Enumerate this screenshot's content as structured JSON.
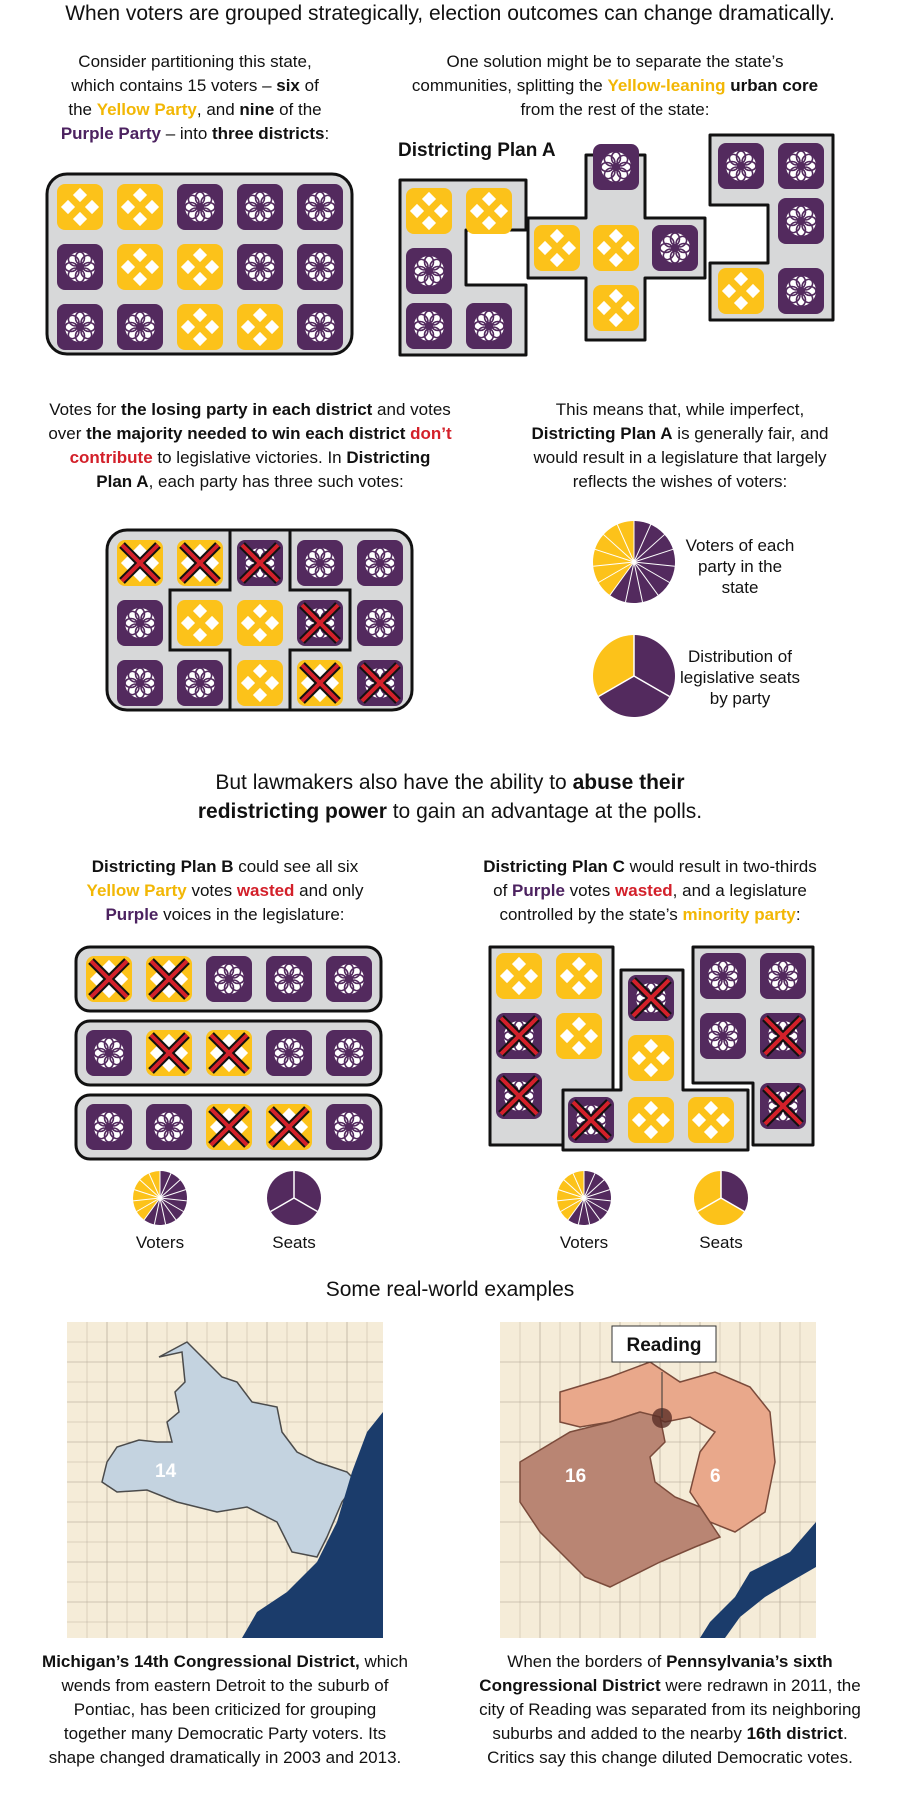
{
  "colors": {
    "yellow": "#fcc21a",
    "purple": "#532a5e",
    "grid_bg": "#d7d8d9",
    "cross": "#d3202a",
    "map_land": "#f5ecd8",
    "map_water": "#1b3c6b",
    "mi_district": "#c4d3e0",
    "pa_16": "#b98573",
    "pa_6": "#e9a88b"
  },
  "headline": "When voters are grouped strategically, election outcomes can change dramatically.",
  "intro": {
    "p1": "Consider partitioning this state,",
    "p2": "which contains 15 voters – ",
    "p3": "six",
    "p4": " of",
    "p5": "the ",
    "p6": "Yellow Party",
    "p7": ", and ",
    "p8": "nine",
    "p9": " of the",
    "p10": "Purple Party",
    "p11": " – into ",
    "p12": "three districts",
    "p13": ":"
  },
  "solution": {
    "s1": "One solution might be to separate the state’s",
    "s2": "communities, splitting the ",
    "s3": "Yellow-leaning",
    "s4": " urban core",
    "s5": "from the rest of the state:"
  },
  "plan_a_title": "Districting Plan A",
  "wasted": {
    "w1": "Votes for ",
    "w2": "the losing party in each district",
    "w3": " and votes",
    "w4": "over ",
    "w5": "the majority needed to win each district",
    "w6": " don’t",
    "w7": "contribute",
    "w8": " to legislative victories. In ",
    "w9": "Districting",
    "w10": "Plan A",
    "w11": ", each party has three such votes:"
  },
  "fair": {
    "f1": "This means that, while imperfect,",
    "f2": "Districting Plan A",
    "f3": " is generally fair, and",
    "f4": "would result in a  legislature that largely",
    "f5": "reflects the wishes of voters:"
  },
  "pie_labels": {
    "voters_state": "Voters of each party in the state",
    "seats_dist": "Distribution of legislative seats by party",
    "voters": "Voters",
    "seats": "Seats"
  },
  "abuse": {
    "a1": "But lawmakers also have the ability to ",
    "a2": "abuse their",
    "a3": "redistricting power",
    "a4": " to gain an advantage at the polls."
  },
  "plan_b": {
    "b1": "Districting Plan B",
    "b2": " could see all six",
    "b3": "Yellow Party",
    "b4": " votes ",
    "b5": "wasted",
    "b6": " and only",
    "b7": "Purple",
    "b8": " voices in the legislature:"
  },
  "plan_c": {
    "c1": "Districting Plan C",
    "c2": " would result in two-thirds",
    "c3": "of ",
    "c4": "Purple",
    "c5": " votes ",
    "c6": "wasted",
    "c7": ", and a legislature",
    "c8": "controlled by the state’s ",
    "c9": "minority party",
    "c10": ":"
  },
  "examples_title": "Some real-world examples",
  "maps": {
    "mi_label": "14",
    "pa_16": "16",
    "pa_6": "6",
    "reading": "Reading"
  },
  "michigan": {
    "m1": "Michigan’s 14th Congressional District,",
    "m2": " which",
    "m3": "wends from eastern Detroit to the suburb of",
    "m4": "Pontiac, has been criticized for grouping",
    "m5": "together many Democratic Party voters. Its",
    "m6": "shape changed dramatically in 2003 and 2013."
  },
  "penn": {
    "n1": "When the borders of ",
    "n2": "Pennsylvania’s sixth",
    "n3": "Congressional District",
    "n4": " were redrawn in 2011, the",
    "n5": "city of Reading was separated from its neighboring",
    "n6": "suburbs and added to the nearby ",
    "n7": "16th district",
    "n8": ".",
    "n9": "Critics say this change diluted Democratic votes."
  },
  "grid": {
    "rows": [
      [
        "Y",
        "Y",
        "P",
        "P",
        "P"
      ],
      [
        "P",
        "Y",
        "Y",
        "P",
        "P"
      ],
      [
        "P",
        "P",
        "Y",
        "Y",
        "P"
      ]
    ]
  },
  "pies": {
    "state_voters": {
      "yellow": 6,
      "purple": 9
    },
    "plan_a_seats": {
      "yellow": 1,
      "purple": 2
    },
    "plan_b_seats": {
      "yellow": 0,
      "purple": 3
    },
    "plan_c_seats": {
      "yellow": 2,
      "purple": 1
    }
  }
}
